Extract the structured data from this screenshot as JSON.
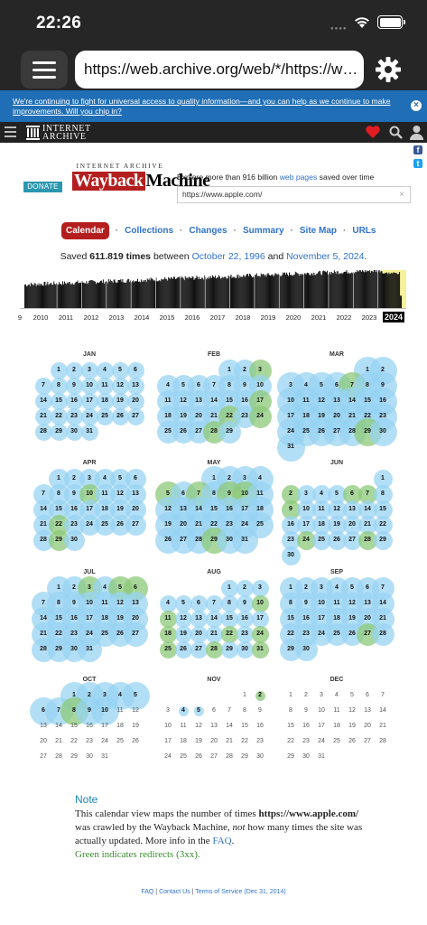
{
  "status_bar": {
    "time": "22:26"
  },
  "browser": {
    "url": "https://web.archive.org/web/*/https://www.ap..."
  },
  "notice": {
    "text": "We're continuing to fight for universal access to quality information—and you can help as we continue to make improvements. Will you chip in?"
  },
  "ia_nav": {
    "logo_line1": "INTERNET",
    "logo_line2": "ARCHIVE"
  },
  "header": {
    "donate_label": "DONATE",
    "logo_top": "INTERNET ARCHIVE",
    "logo_way": "Wayback",
    "logo_machine": "Machine",
    "explore_prefix": "Explore more than 916 billion",
    "explore_link": "web pages",
    "explore_suffix": "saved over time",
    "search_value": "https://www.apple.com/"
  },
  "tabs": [
    "Calendar",
    "Collections",
    "Changes",
    "Summary",
    "Site Map",
    "URLs"
  ],
  "summary": {
    "prefix": "Saved",
    "count": "611.819 times",
    "between": "between",
    "start": "October 22, 1996",
    "and": "and",
    "end": "November 5, 2024",
    "period": "."
  },
  "timeline": {
    "years": [
      "9",
      "2010",
      "2011",
      "2012",
      "2013",
      "2014",
      "2015",
      "2016",
      "2017",
      "2018",
      "2019",
      "2020",
      "2021",
      "2022",
      "2023",
      "2024"
    ],
    "current_year": "2024"
  },
  "calendar": {
    "months": [
      {
        "name": "JAN",
        "start": 1,
        "days": 31,
        "cap": 31
      },
      {
        "name": "FEB",
        "start": 4,
        "days": 29,
        "cap": 29
      },
      {
        "name": "MAR",
        "start": 5,
        "days": 31,
        "cap": 31
      },
      {
        "name": "APR",
        "start": 1,
        "days": 30,
        "cap": 30
      },
      {
        "name": "MAY",
        "start": 3,
        "days": 31,
        "cap": 31
      },
      {
        "name": "JUN",
        "start": 6,
        "days": 30,
        "cap": 30
      },
      {
        "name": "JUL",
        "start": 1,
        "days": 31,
        "cap": 31
      },
      {
        "name": "AUG",
        "start": 4,
        "days": 31,
        "cap": 31
      },
      {
        "name": "SEP",
        "start": 0,
        "days": 30,
        "cap": 30
      },
      {
        "name": "OCT",
        "start": 2,
        "days": 31,
        "cap": 10
      },
      {
        "name": "NOV",
        "start": 5,
        "days": 30,
        "cap_list": [
          2,
          4,
          5
        ]
      },
      {
        "name": "DEC",
        "start": 0,
        "days": 31,
        "cap": 0
      }
    ],
    "green_days": {
      "JAN": [],
      "FEB": [
        3,
        17,
        22,
        24,
        28
      ],
      "MAR": [
        7,
        29
      ],
      "APR": [
        10,
        22,
        29
      ],
      "MAY": [
        5,
        7,
        9,
        10,
        29
      ],
      "JUN": [
        2,
        6,
        7,
        9,
        24,
        28
      ],
      "JUL": [
        3,
        5,
        6
      ],
      "AUG": [
        10,
        11,
        18,
        22,
        24,
        25,
        28,
        31
      ],
      "SEP": [
        27
      ],
      "OCT": [
        8
      ],
      "NOV": [
        2
      ],
      "DEC": []
    }
  },
  "note": {
    "title": "Note",
    "line1": "This calendar view maps the number of times",
    "url": "https://www.apple.com/",
    "line2": "was crawled by the Wayback Machine,",
    "not": "not",
    "line3": "how many times the site was actually updated. More info in the",
    "faq": "FAQ",
    "faq_end": ".",
    "green": "Green indicates redirects (3xx)."
  },
  "footer": {
    "faq": "FAQ",
    "contact": "Contact Us",
    "terms": "Terms of Service (Dec 31, 2014)",
    "sep": "|"
  },
  "colors": {
    "accent_red": "#b41e1e",
    "link_blue": "#3072c9",
    "bubble_blue": "#a5d8f3",
    "bubble_green": "#9ccf8a"
  }
}
